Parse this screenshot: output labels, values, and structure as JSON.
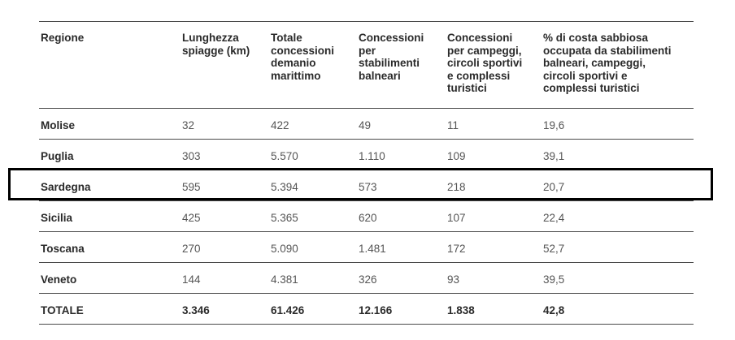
{
  "table": {
    "headers": [
      "Regione",
      "Lunghezza\nspiagge (km)",
      "Totale\nconcessioni\ndemanio\nmarittimo",
      "Concessioni\nper\nstabilimenti\nbalneari",
      "Concessioni\nper campeggi,\ncircoli sportivi\ne complessi\nturistici",
      "% di costa sabbiosa\noccupata da stabilimenti\nbalneari, campeggi,\ncircoli sportivi e\ncomplessi turistici"
    ],
    "rows": [
      [
        "Molise",
        "32",
        "422",
        "49",
        "11",
        "19,6"
      ],
      [
        "Puglia",
        "303",
        "5.570",
        "1.110",
        "109",
        "39,1"
      ],
      [
        "Sardegna",
        "595",
        "5.394",
        "573",
        "218",
        "20,7"
      ],
      [
        "Sicilia",
        "425",
        "5.365",
        "620",
        "107",
        "22,4"
      ],
      [
        "Toscana",
        "270",
        "5.090",
        "1.481",
        "172",
        "52,7"
      ],
      [
        "Veneto",
        "144",
        "4.381",
        "326",
        "93",
        "39,5"
      ],
      [
        "TOTALE",
        "3.346",
        "61.426",
        "12.166",
        "1.838",
        "42,8"
      ]
    ],
    "highlighted_row": "Sardegna"
  },
  "colors": {
    "text": "#2a2a2a",
    "value_text": "#555555",
    "rule": "#4a4a4a",
    "highlight_border": "#000000"
  }
}
